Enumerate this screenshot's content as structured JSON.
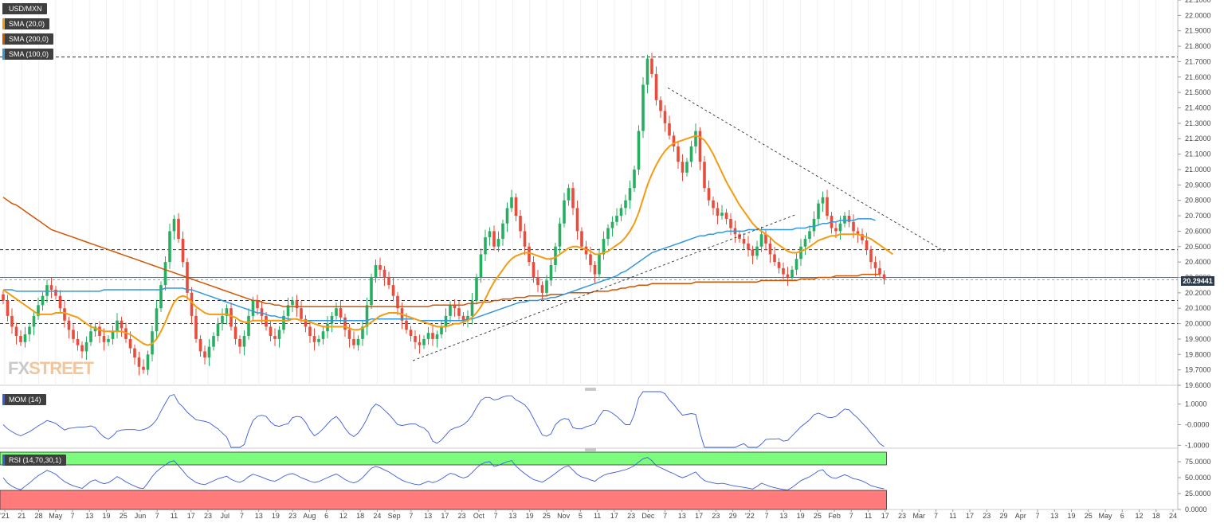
{
  "header": {
    "pair": "USD/MXN",
    "price_tag": "20.29441"
  },
  "legend": [
    {
      "label": "USD/MXN",
      "color": "#3f3f3f"
    },
    {
      "label": "SMA (20,0)",
      "color": "#f39c12"
    },
    {
      "label": "SMA (200,0)",
      "color": "#d35400"
    },
    {
      "label": "SMA (100,0)",
      "color": "#3498db"
    }
  ],
  "indicators": {
    "mom_label": "MOM (14)",
    "rsi_label": "RSI (14,70,30,1)"
  },
  "logo": {
    "text_a": "FX",
    "text_b": "STREET"
  },
  "colors": {
    "up": "#27ae60",
    "down": "#e74c3c",
    "sma20": "#f39c12",
    "sma200": "#d35400",
    "sma100": "#3498db",
    "mom": "#3b5bdb",
    "rsi": "#3b5bdb",
    "rsi_overbought": "#7cfc7c",
    "rsi_oversold": "#ff7b7b"
  },
  "chart_data": [
    {
      "type": "candlestick",
      "title": "USD/MXN",
      "ylim": [
        19.6,
        22.1
      ],
      "y_ticks": [
        "22.1000",
        "22.0000",
        "21.9000",
        "21.8000",
        "21.7000",
        "21.6000",
        "21.5000",
        "21.4000",
        "21.3000",
        "21.2000",
        "21.1000",
        "21.0000",
        "20.9000",
        "20.8000",
        "20.7000",
        "20.6000",
        "20.5000",
        "20.4000",
        "20.3000",
        "20.2000",
        "20.1000",
        "20.0000",
        "19.9000",
        "19.8000",
        "19.7000",
        "19.6000"
      ],
      "x_ticks": [
        "'21",
        "21",
        "28",
        "May",
        "7",
        "13",
        "19",
        "25",
        "Jun",
        "7",
        "11",
        "17",
        "23",
        "Jul",
        "7",
        "13",
        "19",
        "23",
        "Aug",
        "6",
        "12",
        "18",
        "24",
        "Sep",
        "7",
        "13",
        "17",
        "23",
        "Oct",
        "7",
        "13",
        "19",
        "25",
        "Nov",
        "5",
        "11",
        "17",
        "23",
        "Dec",
        "7",
        "13",
        "17",
        "23",
        "29",
        "'22",
        "7",
        "13",
        "19",
        "25",
        "Feb",
        "7",
        "11",
        "17",
        "23",
        "Mar",
        "7",
        "11",
        "17",
        "23",
        "29",
        "Apr",
        "7",
        "13",
        "19",
        "25",
        "May",
        "6",
        "12",
        "18",
        "24"
      ],
      "horizontal_levels": [
        21.73,
        20.48,
        20.3,
        20.15,
        20.0
      ],
      "last_price": 20.29441,
      "trendlines": [
        {
          "name": "descending-resistance",
          "from": [
            21.53,
            "Dec"
          ],
          "to": [
            20.47,
            "Feb 23"
          ]
        },
        {
          "name": "ascending-support",
          "from": [
            19.76,
            "Sep 1"
          ],
          "to": [
            20.71,
            "Jan 1"
          ]
        }
      ],
      "close": [
        20.15,
        20.05,
        19.98,
        19.92,
        19.88,
        19.93,
        19.98,
        20.05,
        20.12,
        20.18,
        20.25,
        20.22,
        20.18,
        20.1,
        20.02,
        19.96,
        19.9,
        19.86,
        19.82,
        19.88,
        19.95,
        19.98,
        19.92,
        19.88,
        19.9,
        19.95,
        20.02,
        19.97,
        19.9,
        19.84,
        19.78,
        19.72,
        19.7,
        19.8,
        19.95,
        20.1,
        20.25,
        20.4,
        20.6,
        20.68,
        20.55,
        20.4,
        20.2,
        20.05,
        19.9,
        19.82,
        19.78,
        19.85,
        19.92,
        20.0,
        20.05,
        20.1,
        19.98,
        19.9,
        19.85,
        19.92,
        20.05,
        20.15,
        20.1,
        20.05,
        19.98,
        19.92,
        19.9,
        19.96,
        20.05,
        20.12,
        20.15,
        20.1,
        20.03,
        19.98,
        19.92,
        19.88,
        19.9,
        19.95,
        20.0,
        20.05,
        20.1,
        20.04,
        19.96,
        19.9,
        19.86,
        19.9,
        19.98,
        20.12,
        20.3,
        20.38,
        20.35,
        20.3,
        20.25,
        20.18,
        20.1,
        20.02,
        19.96,
        19.92,
        19.88,
        19.86,
        19.9,
        19.94,
        19.9,
        19.93,
        19.98,
        20.05,
        20.12,
        20.1,
        20.05,
        20.02,
        20.05,
        20.15,
        20.3,
        20.45,
        20.56,
        20.6,
        20.5,
        20.55,
        20.65,
        20.75,
        20.82,
        20.7,
        20.6,
        20.5,
        20.4,
        20.3,
        20.25,
        20.2,
        20.28,
        20.38,
        20.5,
        20.65,
        20.8,
        20.88,
        20.75,
        20.6,
        20.5,
        20.45,
        20.38,
        20.32,
        20.45,
        20.55,
        20.62,
        20.66,
        20.7,
        20.75,
        20.8,
        20.88,
        21.0,
        21.25,
        21.55,
        21.72,
        21.62,
        21.45,
        21.38,
        21.3,
        21.22,
        21.15,
        21.05,
        20.98,
        21.05,
        21.15,
        21.25,
        21.05,
        20.88,
        20.8,
        20.75,
        20.7,
        20.72,
        20.68,
        20.62,
        20.58,
        20.55,
        20.52,
        20.48,
        20.44,
        20.5,
        20.58,
        20.52,
        20.45,
        20.4,
        20.36,
        20.32,
        20.3,
        20.35,
        20.42,
        20.5,
        20.55,
        20.6,
        20.68,
        20.78,
        20.82,
        20.7,
        20.62,
        20.6,
        20.65,
        20.7,
        20.66,
        20.6,
        20.58,
        20.54,
        20.48,
        20.4,
        20.36,
        20.32,
        20.29
      ],
      "sma20": [
        20.22,
        20.2,
        20.18,
        20.16,
        20.14,
        20.12,
        20.1,
        20.08,
        20.06,
        20.06,
        20.06,
        20.06,
        20.07,
        20.07,
        20.07,
        20.06,
        20.05,
        20.04,
        20.02,
        20.0,
        19.98,
        19.97,
        19.96,
        19.95,
        19.95,
        19.95,
        19.95,
        19.95,
        19.94,
        19.93,
        19.91,
        19.89,
        19.87,
        19.86,
        19.87,
        19.9,
        19.95,
        20.01,
        20.08,
        20.14,
        20.17,
        20.18,
        20.17,
        20.14,
        20.11,
        20.09,
        20.07,
        20.06,
        20.06,
        20.06,
        20.06,
        20.06,
        20.05,
        20.04,
        20.02,
        20.01,
        20.01,
        20.02,
        20.02,
        20.02,
        20.02,
        20.02,
        20.02,
        20.02,
        20.02,
        20.02,
        20.03,
        20.03,
        20.02,
        20.02,
        20.01,
        20.0,
        19.99,
        19.98,
        19.98,
        19.98,
        19.98,
        19.98,
        19.98,
        19.97,
        19.96,
        19.96,
        19.97,
        19.99,
        20.01,
        20.03,
        20.05,
        20.06,
        20.07,
        20.07,
        20.07,
        20.06,
        20.05,
        20.04,
        20.03,
        20.02,
        20.01,
        20.0,
        19.99,
        19.98,
        19.98,
        19.98,
        19.99,
        20.0,
        20.0,
        20.01,
        20.02,
        20.04,
        20.07,
        20.11,
        20.16,
        20.22,
        20.27,
        20.31,
        20.35,
        20.39,
        20.42,
        20.44,
        20.45,
        20.46,
        20.46,
        20.45,
        20.44,
        20.43,
        20.42,
        20.42,
        20.43,
        20.45,
        20.47,
        20.49,
        20.5,
        20.5,
        20.49,
        20.48,
        20.47,
        20.45,
        20.45,
        20.46,
        20.47,
        20.49,
        20.51,
        20.53,
        20.56,
        20.6,
        20.65,
        20.72,
        20.81,
        20.9,
        20.97,
        21.03,
        21.08,
        21.12,
        21.15,
        21.17,
        21.18,
        21.19,
        21.2,
        21.21,
        21.22,
        21.21,
        21.19,
        21.15,
        21.1,
        21.04,
        20.98,
        20.92,
        20.87,
        20.82,
        20.77,
        20.73,
        20.69,
        20.65,
        20.62,
        20.6,
        20.58,
        20.56,
        20.53,
        20.51,
        20.49,
        20.47,
        20.46,
        20.46,
        20.47,
        20.48,
        20.5,
        20.52,
        20.54,
        20.55,
        20.56,
        20.57,
        20.57,
        20.58,
        20.58,
        20.58,
        20.58,
        20.58,
        20.57,
        20.56,
        20.55,
        20.53,
        20.51,
        20.49,
        20.47,
        20.45
      ],
      "sma100": [
        20.22,
        20.22,
        20.22,
        20.21,
        20.21,
        20.21,
        20.21,
        20.21,
        20.21,
        20.21,
        20.21,
        20.21,
        20.21,
        20.21,
        20.21,
        20.21,
        20.21,
        20.21,
        20.21,
        20.21,
        20.21,
        20.21,
        20.21,
        20.22,
        20.22,
        20.22,
        20.22,
        20.22,
        20.22,
        20.22,
        20.22,
        20.22,
        20.22,
        20.22,
        20.22,
        20.22,
        20.22,
        20.23,
        20.23,
        20.23,
        20.23,
        20.23,
        20.22,
        20.22,
        20.21,
        20.2,
        20.19,
        20.18,
        20.17,
        20.16,
        20.15,
        20.14,
        20.13,
        20.12,
        20.11,
        20.1,
        20.09,
        20.08,
        20.07,
        20.07,
        20.06,
        20.05,
        20.05,
        20.04,
        20.04,
        20.03,
        20.03,
        20.03,
        20.02,
        20.02,
        20.02,
        20.02,
        20.02,
        20.02,
        20.02,
        20.02,
        20.02,
        20.02,
        20.02,
        20.02,
        20.02,
        20.02,
        20.02,
        20.02,
        20.03,
        20.03,
        20.03,
        20.03,
        20.03,
        20.03,
        20.03,
        20.03,
        20.03,
        20.03,
        20.03,
        20.02,
        20.02,
        20.02,
        20.02,
        20.02,
        20.02,
        20.02,
        20.02,
        20.02,
        20.02,
        20.02,
        20.03,
        20.03,
        20.04,
        20.05,
        20.06,
        20.07,
        20.08,
        20.09,
        20.1,
        20.11,
        20.12,
        20.13,
        20.14,
        20.14,
        20.15,
        20.15,
        20.15,
        20.16,
        20.16,
        20.17,
        20.17,
        20.18,
        20.19,
        20.2,
        20.21,
        20.22,
        20.23,
        20.24,
        20.25,
        20.26,
        20.27,
        20.28,
        20.29,
        20.3,
        20.31,
        20.33,
        20.34,
        20.36,
        20.38,
        20.4,
        20.42,
        20.44,
        20.46,
        20.47,
        20.48,
        20.49,
        20.5,
        20.51,
        20.52,
        20.53,
        20.54,
        20.55,
        20.56,
        20.57,
        20.57,
        20.58,
        20.58,
        20.59,
        20.59,
        20.6,
        20.6,
        20.6,
        20.6,
        20.6,
        20.61,
        20.61,
        20.61,
        20.61,
        20.61,
        20.61,
        20.61,
        20.61,
        20.61,
        20.61,
        20.61,
        20.62,
        20.62,
        20.62,
        20.63,
        20.63,
        20.64,
        20.65,
        20.65,
        20.66,
        20.66,
        20.67,
        20.67,
        20.67,
        20.67,
        20.68,
        20.68,
        20.68,
        20.68,
        20.67
      ],
      "sma200": [
        20.82,
        20.8,
        20.78,
        20.77,
        20.75,
        20.73,
        20.71,
        20.69,
        20.67,
        20.65,
        20.63,
        20.61,
        20.6,
        20.59,
        20.58,
        20.57,
        20.56,
        20.55,
        20.54,
        20.53,
        20.52,
        20.51,
        20.5,
        20.49,
        20.48,
        20.47,
        20.46,
        20.45,
        20.44,
        20.43,
        20.42,
        20.41,
        20.4,
        20.39,
        20.38,
        20.37,
        20.36,
        20.35,
        20.34,
        20.33,
        20.32,
        20.31,
        20.3,
        20.29,
        20.28,
        20.27,
        20.26,
        20.25,
        20.24,
        20.23,
        20.22,
        20.21,
        20.2,
        20.19,
        20.18,
        20.17,
        20.16,
        20.15,
        20.15,
        20.14,
        20.13,
        20.13,
        20.12,
        20.12,
        20.11,
        20.11,
        20.11,
        20.11,
        20.11,
        20.11,
        20.11,
        20.11,
        20.11,
        20.11,
        20.11,
        20.11,
        20.11,
        20.11,
        20.11,
        20.11,
        20.11,
        20.11,
        20.11,
        20.11,
        20.11,
        20.11,
        20.11,
        20.11,
        20.11,
        20.11,
        20.11,
        20.11,
        20.11,
        20.11,
        20.11,
        20.11,
        20.11,
        20.11,
        20.12,
        20.12,
        20.12,
        20.12,
        20.12,
        20.12,
        20.12,
        20.12,
        20.13,
        20.13,
        20.13,
        20.14,
        20.14,
        20.14,
        20.15,
        20.15,
        20.16,
        20.16,
        20.16,
        20.17,
        20.17,
        20.17,
        20.18,
        20.18,
        20.18,
        20.18,
        20.18,
        20.19,
        20.19,
        20.19,
        20.19,
        20.2,
        20.2,
        20.2,
        20.2,
        20.2,
        20.2,
        20.21,
        20.21,
        20.21,
        20.21,
        20.22,
        20.22,
        20.23,
        20.23,
        20.24,
        20.24,
        20.25,
        20.25,
        20.25,
        20.26,
        20.26,
        20.26,
        20.26,
        20.26,
        20.26,
        20.26,
        20.26,
        20.26,
        20.26,
        20.27,
        20.27,
        20.27,
        20.27,
        20.27,
        20.27,
        20.27,
        20.27,
        20.27,
        20.27,
        20.27,
        20.27,
        20.27,
        20.27,
        20.27,
        20.28,
        20.28,
        20.28,
        20.28,
        20.28,
        20.28,
        20.28,
        20.28,
        20.28,
        20.29,
        20.29,
        20.29,
        20.29,
        20.3,
        20.3,
        20.3,
        20.3,
        20.31,
        20.31,
        20.31,
        20.31,
        20.31,
        20.31,
        20.32,
        20.32,
        20.32,
        20.32,
        20.32
      ]
    },
    {
      "type": "line",
      "title": "MOM (14)",
      "ylim": [
        -1.1,
        1.6
      ],
      "y_ticks": [
        "1.0000",
        "-0.0000",
        "-1.0000"
      ]
    },
    {
      "type": "line",
      "title": "RSI (14,70,30,1)",
      "ylim": [
        0,
        90
      ],
      "y_ticks": [
        "75.0000",
        "50.0000",
        "25.0000",
        "0.0000"
      ],
      "overbought": 70,
      "oversold": 30
    }
  ]
}
